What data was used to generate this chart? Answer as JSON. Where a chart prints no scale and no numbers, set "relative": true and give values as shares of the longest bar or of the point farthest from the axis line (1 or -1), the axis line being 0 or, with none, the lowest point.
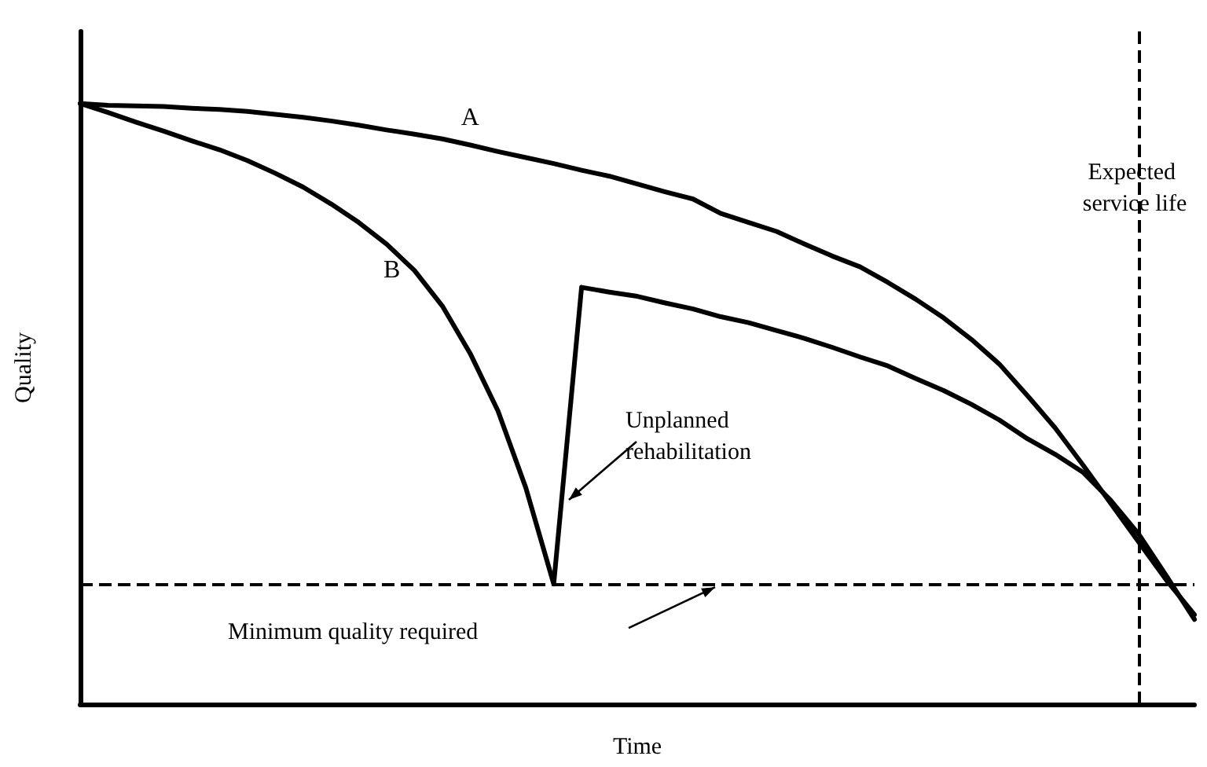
{
  "chart_data": {
    "type": "line",
    "relative": true,
    "xlabel": "Time",
    "ylabel": "Quality",
    "legend": false,
    "line_style": "solid",
    "categories": [
      null,
      null,
      null,
      null,
      null,
      null,
      null,
      null,
      null,
      null,
      null,
      null,
      null,
      null,
      null,
      null,
      null,
      null,
      null,
      null,
      null,
      null,
      null,
      null,
      null,
      null,
      null,
      null,
      null,
      null,
      null,
      null,
      null,
      null,
      null,
      null,
      null,
      null,
      null,
      null,
      null
    ],
    "series": [
      {
        "name": "A",
        "color": "#000000",
        "values": [
          1.0,
          0.997,
          0.996,
          0.995,
          0.992,
          0.99,
          0.987,
          0.982,
          0.977,
          0.971,
          0.964,
          0.956,
          0.949,
          0.941,
          0.931,
          0.92,
          0.91,
          0.9,
          0.889,
          0.879,
          0.866,
          0.853,
          0.841,
          0.817,
          0.802,
          0.787,
          0.766,
          0.746,
          0.728,
          0.702,
          0.674,
          0.643,
          0.607,
          0.566,
          0.514,
          0.46,
          0.398,
          0.334,
          0.27,
          0.206,
          0.149
        ]
      },
      {
        "name": "B",
        "color": "#000000",
        "values": [
          1.0,
          0.985,
          0.969,
          0.954,
          0.938,
          0.923,
          0.905,
          0.884,
          0.861,
          0.833,
          0.802,
          0.766,
          0.722,
          0.663,
          0.584,
          0.488,
          0.36,
          0.2,
          0.694,
          0.686,
          0.679,
          0.668,
          0.658,
          0.645,
          0.635,
          0.622,
          0.609,
          0.594,
          0.578,
          0.563,
          0.542,
          0.522,
          0.499,
          0.473,
          0.442,
          0.416,
          0.386,
          0.339,
          0.283,
          0.213,
          0.141
        ]
      }
    ],
    "ref_lines": [
      {
        "axis": "y",
        "value": 0.2,
        "label": "Minimum quality required",
        "line_style": "dashed",
        "color": "#000000"
      }
    ],
    "annotations": [
      "Unplanned rehabilitation",
      "Expected service life"
    ]
  }
}
